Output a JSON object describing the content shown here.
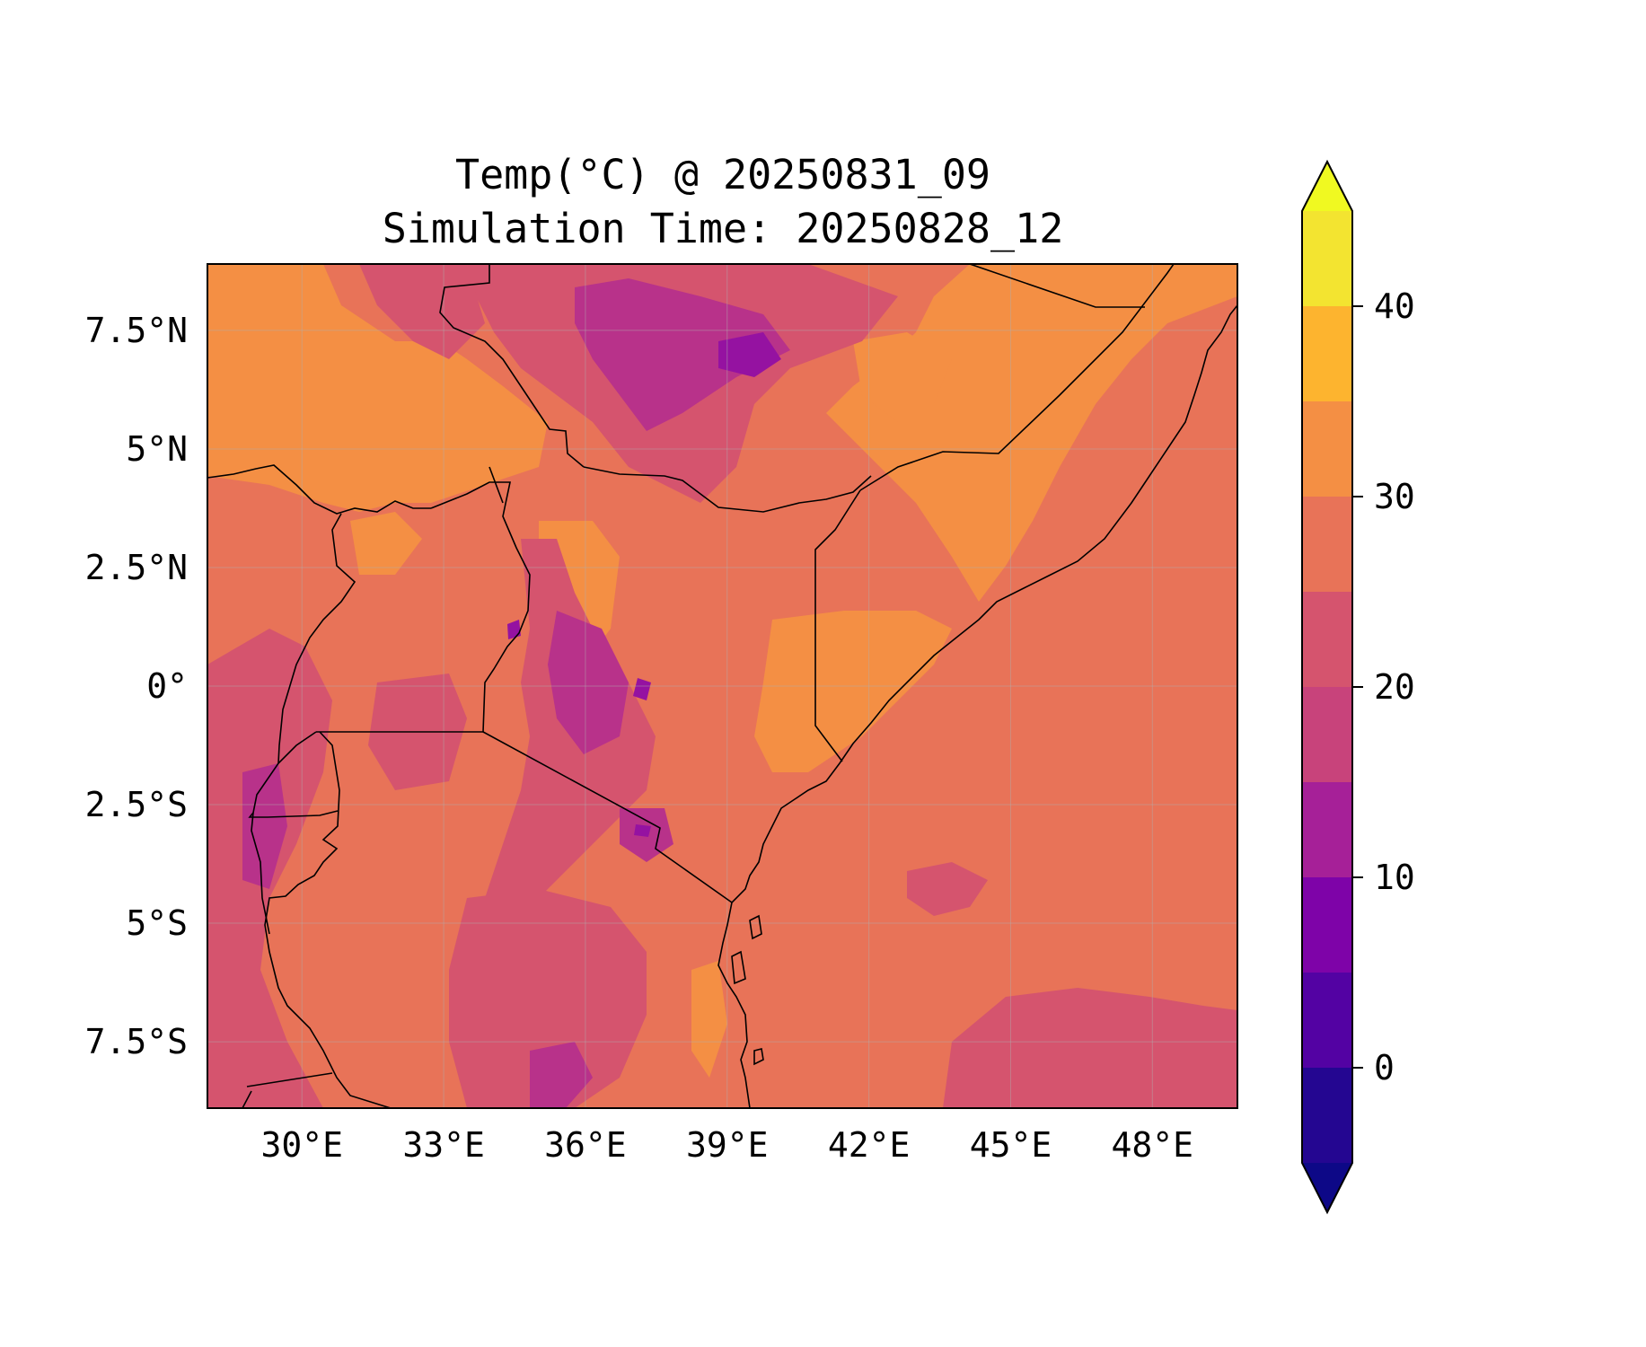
{
  "title_line1": "Temp(°C) @ 20250831_09",
  "title_line2": "Simulation Time: 20250828_12",
  "map": {
    "extent": {
      "lon_min": 28.0,
      "lon_max": 49.8,
      "lat_min": -8.9,
      "lat_max": 8.9
    },
    "lon_ticks": [
      {
        "value": 30,
        "label": "30°E"
      },
      {
        "value": 33,
        "label": "33°E"
      },
      {
        "value": 36,
        "label": "36°E"
      },
      {
        "value": 39,
        "label": "39°E"
      },
      {
        "value": 42,
        "label": "42°E"
      },
      {
        "value": 45,
        "label": "45°E"
      },
      {
        "value": 48,
        "label": "48°E"
      }
    ],
    "lat_ticks": [
      {
        "value": 7.5,
        "label": "7.5°N"
      },
      {
        "value": 5,
        "label": "5°N"
      },
      {
        "value": 2.5,
        "label": "2.5°N"
      },
      {
        "value": 0,
        "label": "0°"
      },
      {
        "value": -2.5,
        "label": "2.5°S"
      },
      {
        "value": -5,
        "label": "5°S"
      },
      {
        "value": -7.5,
        "label": "7.5°S"
      }
    ],
    "gridlines": true,
    "colors": {
      "ocean_base": "#e87358",
      "band_20_25": "#d5546e",
      "band_30_35": "#f48f44",
      "band_15_20": "#b8328a",
      "band_10_15": "#9512a1",
      "border": "#000000"
    }
  },
  "colorbar": {
    "levels": [
      -5,
      0,
      5,
      10,
      15,
      20,
      25,
      30,
      35,
      40,
      45
    ],
    "colors": [
      "#240691",
      "#5302a3",
      "#7e03a8",
      "#a62098",
      "#c8437b",
      "#d5546e",
      "#e87358",
      "#f48f44",
      "#fdb42f",
      "#f3e430"
    ],
    "under_color": "#0d0887",
    "over_color": "#f0f921",
    "extend": "both",
    "tick_labels": [
      {
        "value": 0,
        "label": "0"
      },
      {
        "value": 10,
        "label": "10"
      },
      {
        "value": 20,
        "label": "20"
      },
      {
        "value": 30,
        "label": "30"
      },
      {
        "value": 40,
        "label": "40"
      }
    ]
  }
}
